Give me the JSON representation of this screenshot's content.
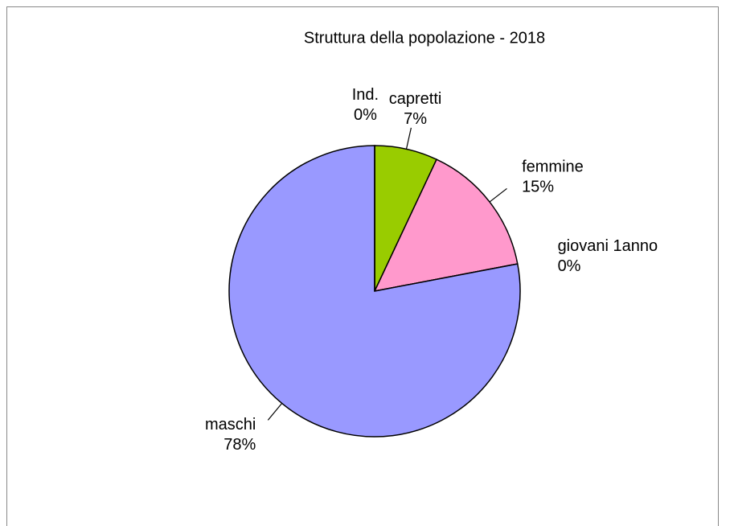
{
  "chart_data": {
    "type": "pie",
    "title": "Struttura della popolazione - 2018",
    "categories": [
      "capretti",
      "femmine",
      "giovani 1anno",
      "maschi",
      "Ind."
    ],
    "values": [
      7,
      15,
      0,
      78,
      0
    ],
    "value_labels": [
      "7%",
      "15%",
      "0%",
      "78%",
      "0%"
    ],
    "colors": [
      "#99cc00",
      "#ff99cc",
      "#ffff99",
      "#9999ff",
      "#cc99ff"
    ]
  }
}
